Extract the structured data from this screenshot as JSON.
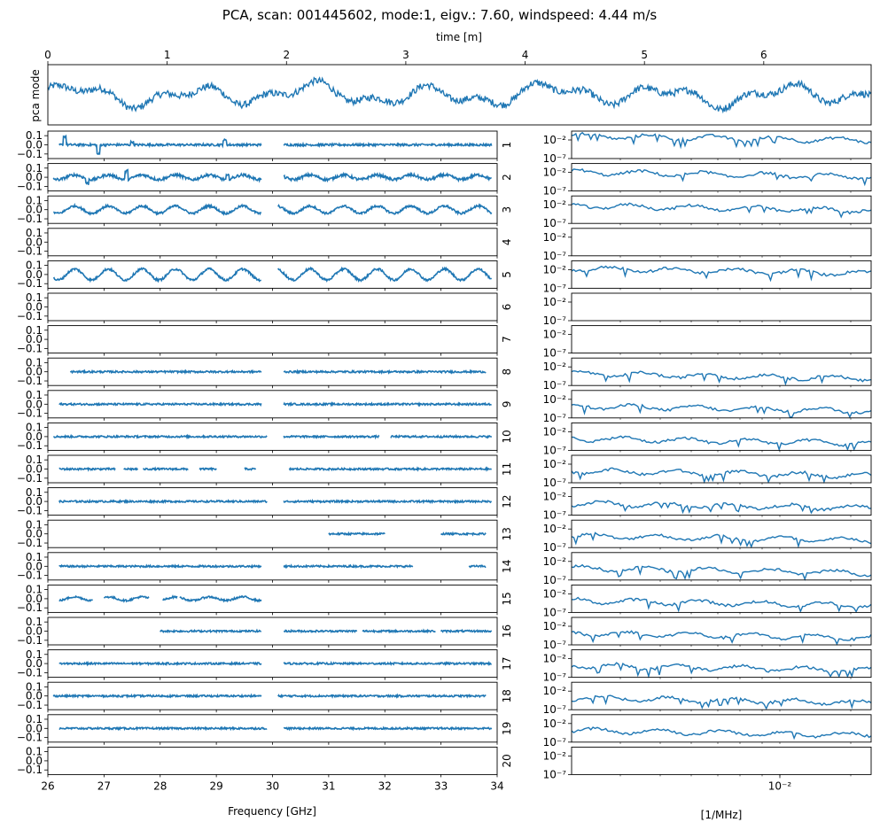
{
  "chart_data": {
    "type": "line",
    "title": "PCA, scan: 001445602, mode:1, eigv.: 7.60, windspeed: 4.44 m/s",
    "top_panel": {
      "ylabel": "pca mode",
      "xlabel": "time [m]",
      "xlim": [
        0,
        6.9
      ],
      "x_ticks": [
        "0",
        "1",
        "2",
        "3",
        "4",
        "5",
        "6"
      ],
      "x_tick_values": [
        0,
        1,
        2,
        3,
        4,
        5,
        6
      ]
    },
    "left_panels": {
      "xlabel": "Frequency [GHz]",
      "xlim": [
        26,
        34
      ],
      "x_ticks": [
        "26",
        "27",
        "28",
        "29",
        "30",
        "31",
        "32",
        "33",
        "34"
      ],
      "x_tick_values": [
        26,
        27,
        28,
        29,
        30,
        31,
        32,
        33,
        34
      ],
      "ylim": [
        -0.15,
        0.15
      ],
      "y_ticks": [
        "0.1",
        "0.0",
        "−0.1"
      ],
      "y_tick_values": [
        0.1,
        0.0,
        -0.1
      ]
    },
    "right_panels": {
      "xlabel": "[1/MHz]",
      "x_tick": "10⁻²",
      "y_ticks": [
        "10⁻²",
        "10⁻⁷"
      ],
      "y_tick_exponents": [
        -2,
        -7
      ]
    },
    "feed_labels": [
      "1",
      "2",
      "3",
      "4",
      "5",
      "6",
      "7",
      "8",
      "9",
      "10",
      "11",
      "12",
      "13",
      "14",
      "15",
      "16",
      "17",
      "18",
      "19",
      "20"
    ],
    "feeds": [
      {
        "feed": 1,
        "segments": [
          [
            26.2,
            29.8
          ],
          [
            30.2,
            33.9
          ]
        ],
        "amp": 0.012,
        "wave": 0,
        "spikes": [
          [
            26.3,
            0.09
          ],
          [
            26.9,
            -0.1
          ],
          [
            27.5,
            0.03
          ],
          [
            29.15,
            0.05
          ]
        ],
        "has_spectrum": true,
        "spec_level": -2.2
      },
      {
        "feed": 2,
        "segments": [
          [
            26.1,
            29.8
          ],
          [
            30.2,
            33.9
          ]
        ],
        "amp": 0.015,
        "wave": 0.025,
        "spikes": [
          [
            27.4,
            0.09
          ],
          [
            26.7,
            -0.05
          ],
          [
            29.2,
            0.04
          ]
        ],
        "has_spectrum": true,
        "spec_level": -3.2
      },
      {
        "feed": 3,
        "segments": [
          [
            26.1,
            29.8
          ],
          [
            30.1,
            33.9
          ]
        ],
        "amp": 0.012,
        "wave": 0.04,
        "spikes": [],
        "has_spectrum": true,
        "spec_level": -3.5
      },
      {
        "feed": 4,
        "segments": [],
        "amp": 0,
        "wave": 0,
        "spikes": [],
        "has_spectrum": false,
        "spec_level": 0
      },
      {
        "feed": 5,
        "segments": [
          [
            26.1,
            29.8
          ],
          [
            30.1,
            33.9
          ]
        ],
        "amp": 0.012,
        "wave": 0.06,
        "spikes": [],
        "has_spectrum": true,
        "spec_level": -3.0
      },
      {
        "feed": 6,
        "segments": [],
        "amp": 0,
        "wave": 0,
        "spikes": [],
        "has_spectrum": false,
        "spec_level": 0
      },
      {
        "feed": 7,
        "segments": [],
        "amp": 0,
        "wave": 0,
        "spikes": [],
        "has_spectrum": false,
        "spec_level": 0
      },
      {
        "feed": 8,
        "segments": [
          [
            26.4,
            29.8
          ],
          [
            30.2,
            33.8
          ]
        ],
        "amp": 0.01,
        "wave": 0,
        "spikes": [],
        "has_spectrum": true,
        "spec_level": -5.0
      },
      {
        "feed": 9,
        "segments": [
          [
            26.2,
            29.8
          ],
          [
            30.2,
            33.9
          ]
        ],
        "amp": 0.01,
        "wave": 0,
        "spikes": [],
        "has_spectrum": true,
        "spec_level": -5.0
      },
      {
        "feed": 10,
        "segments": [
          [
            26.1,
            29.9
          ],
          [
            30.2,
            31.9
          ],
          [
            32.1,
            33.9
          ]
        ],
        "amp": 0.01,
        "wave": 0,
        "spikes": [],
        "has_spectrum": true,
        "spec_level": -5.0
      },
      {
        "feed": 11,
        "segments": [
          [
            26.2,
            27.2
          ],
          [
            27.35,
            27.6
          ],
          [
            27.7,
            28.5
          ],
          [
            28.7,
            29.0
          ],
          [
            29.5,
            29.7
          ],
          [
            30.3,
            33.9
          ]
        ],
        "amp": 0.01,
        "wave": 0,
        "spikes": [],
        "has_spectrum": true,
        "spec_level": -5.0
      },
      {
        "feed": 12,
        "segments": [
          [
            26.2,
            29.9
          ],
          [
            30.2,
            33.9
          ]
        ],
        "amp": 0.01,
        "wave": 0,
        "spikes": [],
        "has_spectrum": true,
        "spec_level": -5.0
      },
      {
        "feed": 13,
        "segments": [
          [
            31.0,
            32.0
          ],
          [
            33.0,
            33.8
          ]
        ],
        "amp": 0.01,
        "wave": 0,
        "spikes": [],
        "has_spectrum": true,
        "spec_level": -5.0
      },
      {
        "feed": 14,
        "segments": [
          [
            26.2,
            29.8
          ],
          [
            30.2,
            32.5
          ],
          [
            33.5,
            33.8
          ]
        ],
        "amp": 0.01,
        "wave": 0,
        "spikes": [],
        "has_spectrum": true,
        "spec_level": -5.0
      },
      {
        "feed": 15,
        "segments": [
          [
            26.2,
            26.8
          ],
          [
            27.0,
            27.8
          ],
          [
            28.05,
            28.3
          ],
          [
            28.35,
            29.8
          ]
        ],
        "amp": 0.01,
        "wave": 0.02,
        "spikes": [],
        "has_spectrum": true,
        "spec_level": -5.0
      },
      {
        "feed": 16,
        "segments": [
          [
            28.0,
            29.8
          ],
          [
            30.2,
            31.5
          ],
          [
            31.6,
            32.9
          ],
          [
            33.0,
            33.9
          ]
        ],
        "amp": 0.01,
        "wave": 0,
        "spikes": [],
        "has_spectrum": true,
        "spec_level": -5.0
      },
      {
        "feed": 17,
        "segments": [
          [
            26.2,
            29.8
          ],
          [
            30.2,
            33.9
          ]
        ],
        "amp": 0.01,
        "wave": 0,
        "spikes": [],
        "has_spectrum": true,
        "spec_level": -5.0
      },
      {
        "feed": 18,
        "segments": [
          [
            26.1,
            29.8
          ],
          [
            30.1,
            33.8
          ]
        ],
        "amp": 0.01,
        "wave": 0,
        "spikes": [],
        "has_spectrum": true,
        "spec_level": -5.0
      },
      {
        "feed": 19,
        "segments": [
          [
            26.2,
            29.9
          ],
          [
            30.2,
            33.9
          ]
        ],
        "amp": 0.01,
        "wave": 0,
        "spikes": [],
        "has_spectrum": true,
        "spec_level": -5.0
      },
      {
        "feed": 20,
        "segments": [],
        "amp": 0,
        "wave": 0,
        "spikes": [],
        "has_spectrum": false,
        "spec_level": 0
      }
    ],
    "line_color": "#1f77b4"
  }
}
